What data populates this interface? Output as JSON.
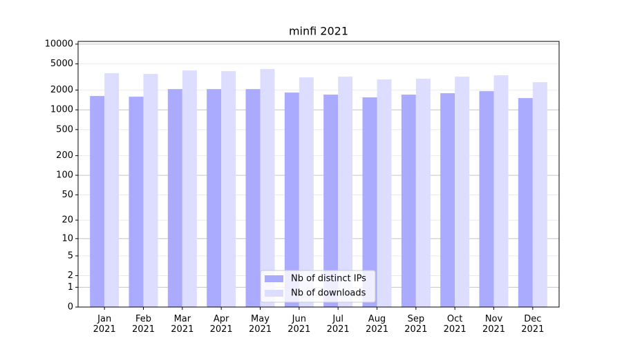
{
  "chart_data": {
    "type": "bar",
    "title": "minfi 2021",
    "categories": [
      "Jan\n2021",
      "Feb\n2021",
      "Mar\n2021",
      "Apr\n2021",
      "May\n2021",
      "Jun\n2021",
      "Jul\n2021",
      "Aug\n2021",
      "Sep\n2021",
      "Oct\n2021",
      "Nov\n2021",
      "Dec\n2021"
    ],
    "series": [
      {
        "name": "Nb of distinct IPs",
        "color": "#aaaaff",
        "values": [
          1625,
          1585,
          2070,
          2070,
          2070,
          1833,
          1706,
          1548,
          1706,
          1790,
          1925,
          1510
        ]
      },
      {
        "name": "Nb of downloads",
        "color": "#ddddff",
        "values": [
          3606,
          3524,
          3975,
          3880,
          4170,
          3120,
          3197,
          2904,
          2972,
          3197,
          3357,
          2636
        ]
      }
    ],
    "yscale": "log1p",
    "ylim": [
      0,
      11000
    ],
    "yticks": [
      0,
      1,
      2,
      5,
      10,
      20,
      50,
      100,
      200,
      500,
      1000,
      2000,
      5000,
      10000
    ],
    "grid": true,
    "legend": "lower center"
  }
}
